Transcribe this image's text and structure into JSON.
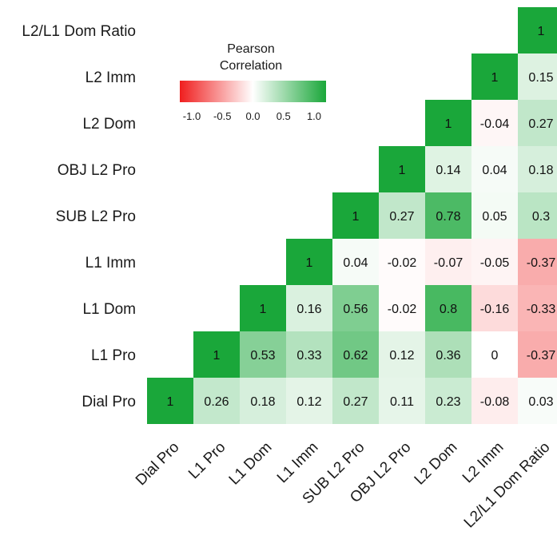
{
  "chart_data": {
    "type": "heatmap",
    "variables": [
      "Dial Pro",
      "L1 Pro",
      "L1 Dom",
      "L1 Imm",
      "SUB L2 Pro",
      "OBJ L2 Pro",
      "L2 Dom",
      "L2 Imm",
      "L2/L1 Dom Ratio"
    ],
    "cells": [
      {
        "row": "Dial Pro",
        "col": "Dial Pro",
        "value": 1,
        "label": "1"
      },
      {
        "row": "Dial Pro",
        "col": "L1 Pro",
        "value": 0.26,
        "label": "0.26"
      },
      {
        "row": "Dial Pro",
        "col": "L1 Dom",
        "value": 0.18,
        "label": "0.18"
      },
      {
        "row": "Dial Pro",
        "col": "L1 Imm",
        "value": 0.12,
        "label": "0.12"
      },
      {
        "row": "Dial Pro",
        "col": "SUB L2 Pro",
        "value": 0.27,
        "label": "0.27"
      },
      {
        "row": "Dial Pro",
        "col": "OBJ L2 Pro",
        "value": 0.11,
        "label": "0.11"
      },
      {
        "row": "Dial Pro",
        "col": "L2 Dom",
        "value": 0.23,
        "label": "0.23"
      },
      {
        "row": "Dial Pro",
        "col": "L2 Imm",
        "value": -0.08,
        "label": "-0.08"
      },
      {
        "row": "Dial Pro",
        "col": "L2/L1 Dom Ratio",
        "value": 0.03,
        "label": "0.03"
      },
      {
        "row": "L1 Pro",
        "col": "L1 Pro",
        "value": 1,
        "label": "1"
      },
      {
        "row": "L1 Pro",
        "col": "L1 Dom",
        "value": 0.53,
        "label": "0.53"
      },
      {
        "row": "L1 Pro",
        "col": "L1 Imm",
        "value": 0.33,
        "label": "0.33"
      },
      {
        "row": "L1 Pro",
        "col": "SUB L2 Pro",
        "value": 0.62,
        "label": "0.62"
      },
      {
        "row": "L1 Pro",
        "col": "OBJ L2 Pro",
        "value": 0.12,
        "label": "0.12"
      },
      {
        "row": "L1 Pro",
        "col": "L2 Dom",
        "value": 0.36,
        "label": "0.36"
      },
      {
        "row": "L1 Pro",
        "col": "L2 Imm",
        "value": 0,
        "label": "0"
      },
      {
        "row": "L1 Pro",
        "col": "L2/L1 Dom Ratio",
        "value": -0.37,
        "label": "-0.37"
      },
      {
        "row": "L1 Dom",
        "col": "L1 Dom",
        "value": 1,
        "label": "1"
      },
      {
        "row": "L1 Dom",
        "col": "L1 Imm",
        "value": 0.16,
        "label": "0.16"
      },
      {
        "row": "L1 Dom",
        "col": "SUB L2 Pro",
        "value": 0.56,
        "label": "0.56"
      },
      {
        "row": "L1 Dom",
        "col": "OBJ L2 Pro",
        "value": -0.02,
        "label": "-0.02"
      },
      {
        "row": "L1 Dom",
        "col": "L2 Dom",
        "value": 0.8,
        "label": "0.8"
      },
      {
        "row": "L1 Dom",
        "col": "L2 Imm",
        "value": -0.16,
        "label": "-0.16"
      },
      {
        "row": "L1 Dom",
        "col": "L2/L1 Dom Ratio",
        "value": -0.33,
        "label": "-0.33"
      },
      {
        "row": "L1 Imm",
        "col": "L1 Imm",
        "value": 1,
        "label": "1"
      },
      {
        "row": "L1 Imm",
        "col": "SUB L2 Pro",
        "value": 0.04,
        "label": "0.04"
      },
      {
        "row": "L1 Imm",
        "col": "OBJ L2 Pro",
        "value": -0.02,
        "label": "-0.02"
      },
      {
        "row": "L1 Imm",
        "col": "L2 Dom",
        "value": -0.07,
        "label": "-0.07"
      },
      {
        "row": "L1 Imm",
        "col": "L2 Imm",
        "value": -0.05,
        "label": "-0.05"
      },
      {
        "row": "L1 Imm",
        "col": "L2/L1 Dom Ratio",
        "value": -0.37,
        "label": "-0.37"
      },
      {
        "row": "SUB L2 Pro",
        "col": "SUB L2 Pro",
        "value": 1,
        "label": "1"
      },
      {
        "row": "SUB L2 Pro",
        "col": "OBJ L2 Pro",
        "value": 0.27,
        "label": "0.27"
      },
      {
        "row": "SUB L2 Pro",
        "col": "L2 Dom",
        "value": 0.78,
        "label": "0.78"
      },
      {
        "row": "SUB L2 Pro",
        "col": "L2 Imm",
        "value": 0.05,
        "label": "0.05"
      },
      {
        "row": "SUB L2 Pro",
        "col": "L2/L1 Dom Ratio",
        "value": 0.3,
        "label": "0.3"
      },
      {
        "row": "OBJ L2 Pro",
        "col": "OBJ L2 Pro",
        "value": 1,
        "label": "1"
      },
      {
        "row": "OBJ L2 Pro",
        "col": "L2 Dom",
        "value": 0.14,
        "label": "0.14"
      },
      {
        "row": "OBJ L2 Pro",
        "col": "L2 Imm",
        "value": 0.04,
        "label": "0.04"
      },
      {
        "row": "OBJ L2 Pro",
        "col": "L2/L1 Dom Ratio",
        "value": 0.18,
        "label": "0.18"
      },
      {
        "row": "L2 Dom",
        "col": "L2 Dom",
        "value": 1,
        "label": "1"
      },
      {
        "row": "L2 Dom",
        "col": "L2 Imm",
        "value": -0.04,
        "label": "-0.04"
      },
      {
        "row": "L2 Dom",
        "col": "L2/L1 Dom Ratio",
        "value": 0.27,
        "label": "0.27"
      },
      {
        "row": "L2 Imm",
        "col": "L2 Imm",
        "value": 1,
        "label": "1"
      },
      {
        "row": "L2 Imm",
        "col": "L2/L1 Dom Ratio",
        "value": 0.15,
        "label": "0.15"
      },
      {
        "row": "L2/L1 Dom Ratio",
        "col": "L2/L1 Dom Ratio",
        "value": 1,
        "label": "1"
      }
    ],
    "legend": {
      "title_lines": [
        "Pearson",
        "Correlation"
      ],
      "range": [
        -1.0,
        1.0
      ],
      "ticks": [
        "-1.0",
        "-0.5",
        "0.0",
        "0.5",
        "1.0"
      ],
      "placement": "top-left"
    },
    "colors": {
      "negative": "#f01e1e",
      "zero": "#ffffff",
      "positive": "#1aa73a"
    }
  }
}
